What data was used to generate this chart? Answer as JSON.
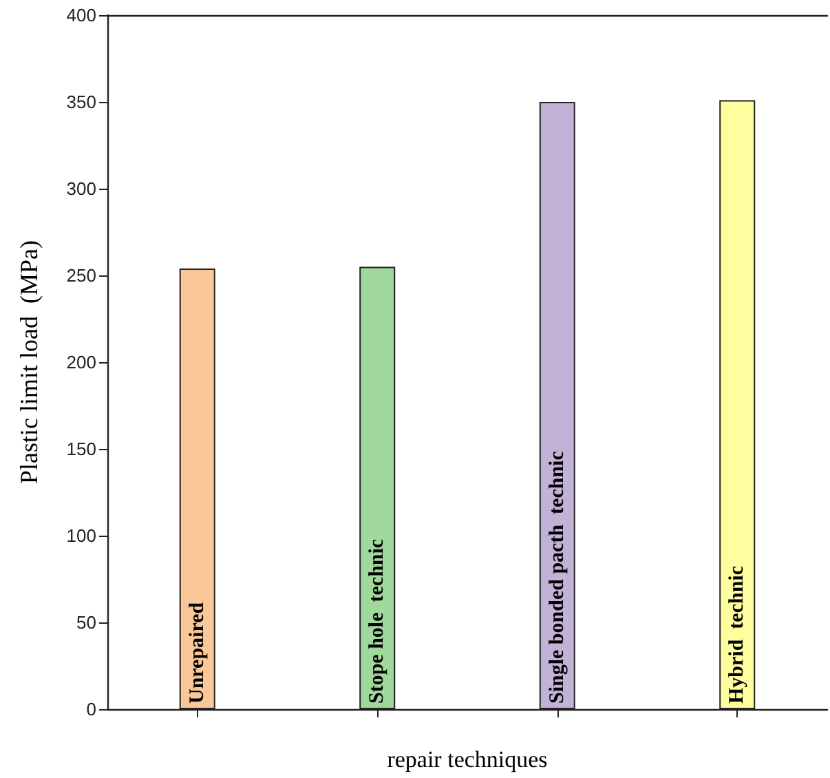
{
  "chart_data": {
    "type": "bar",
    "xlabel": "repair techniques",
    "ylabel": "Plastic limit load  (MPa)",
    "categories": [
      "Unrepaired",
      "Stope hole  technic",
      "Single bonded pacth  technic",
      "Hybrid  technic"
    ],
    "values": [
      254,
      255,
      350,
      351
    ],
    "colors": [
      "#fac898",
      "#a0d99b",
      "#c2b2d8",
      "#fffe9e"
    ],
    "ylim": [
      0,
      400
    ],
    "yticks": [
      0,
      50,
      100,
      150,
      200,
      250,
      300,
      350,
      400
    ],
    "grid": false,
    "tick_labels": "y"
  }
}
